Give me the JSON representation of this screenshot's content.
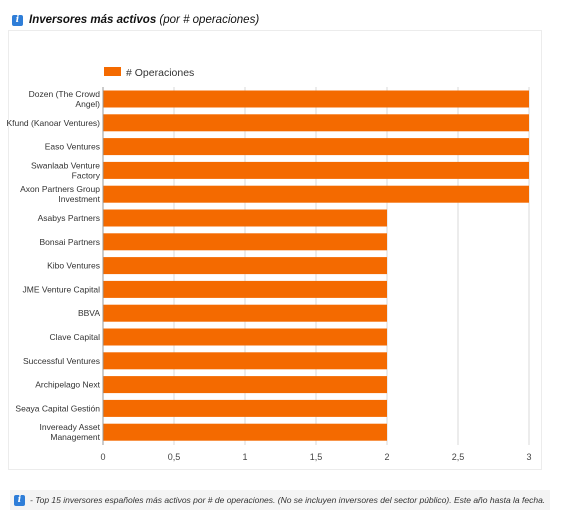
{
  "header": {
    "title": "Inversores más activos",
    "subtitle": "(por # operaciones)"
  },
  "footer": {
    "text": "- Top 15 inversores españoles más activos por # de operaciones. (No se incluyen inversores del sector público). Este año hasta la fecha."
  },
  "colors": {
    "bar": "#f46a00",
    "grid": "#d9d9d9",
    "accent": "#2f7ed8"
  },
  "chart_data": {
    "type": "bar",
    "orientation": "horizontal",
    "title": "",
    "xlabel": "",
    "ylabel": "",
    "xlim": [
      0,
      3
    ],
    "ticks": [
      "0",
      "0,5",
      "1",
      "1,5",
      "2",
      "2,5",
      "3"
    ],
    "tick_values": [
      0,
      0.5,
      1,
      1.5,
      2,
      2.5,
      3
    ],
    "grid": true,
    "legend_position": "top-left",
    "categories": [
      [
        "Dozen (The Crowd",
        "Angel)"
      ],
      [
        "Kfund (Kanoar Ventures)"
      ],
      [
        "Easo Ventures"
      ],
      [
        "Swanlaab Venture",
        "Factory"
      ],
      [
        "Axon Partners Group",
        "Investment"
      ],
      [
        "Asabys Partners"
      ],
      [
        "Bonsai Partners"
      ],
      [
        "Kibo Ventures"
      ],
      [
        "JME Venture Capital"
      ],
      [
        "BBVA"
      ],
      [
        "Clave Capital"
      ],
      [
        "Successful Ventures"
      ],
      [
        "Archipelago Next"
      ],
      [
        "Seaya Capital Gestión"
      ],
      [
        "Inveready Asset",
        "Management"
      ]
    ],
    "series": [
      {
        "name": "# Operaciones",
        "values": [
          3,
          3,
          3,
          3,
          3,
          2,
          2,
          2,
          2,
          2,
          2,
          2,
          2,
          2,
          2
        ]
      }
    ]
  }
}
